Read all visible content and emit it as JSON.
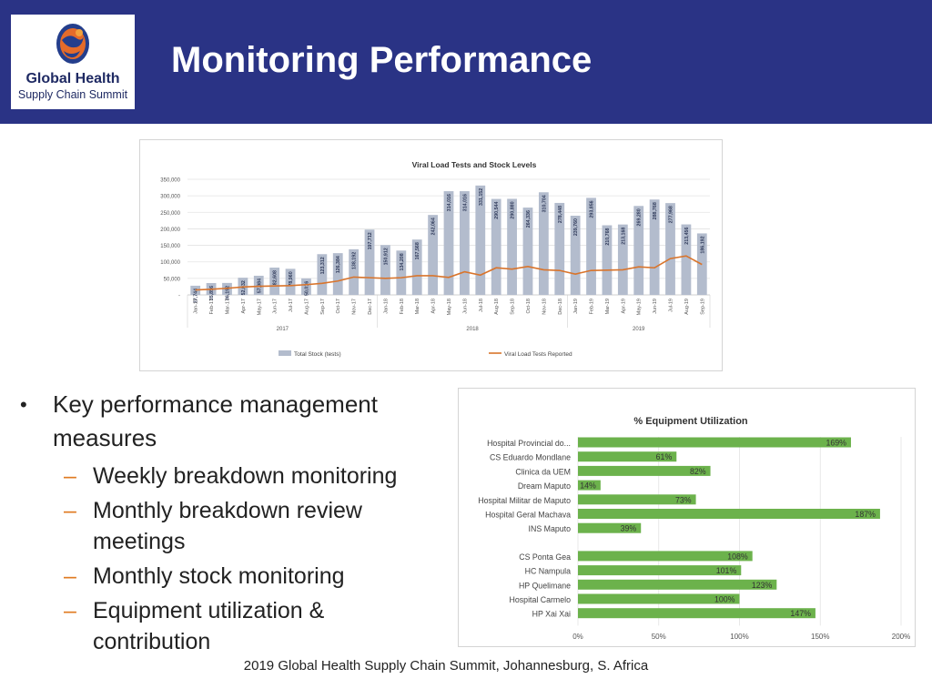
{
  "header": {
    "title": "Monitoring Performance",
    "logo_line1": "Global Health",
    "logo_line2": "Supply Chain Summit"
  },
  "bullets": {
    "main": "Key performance management measures",
    "subs": [
      "Weekly breakdown monitoring",
      "Monthly breakdown review meetings",
      "Monthly stock monitoring",
      "Equipment utilization & contribution"
    ]
  },
  "footer": "2019 Global Health Supply Chain Summit, Johannesburg, S. Africa",
  "colors": {
    "header": "#2a3385",
    "bar_gray": "#b3bccd",
    "line_orange": "#d9742b",
    "bar_green": "#6cb24c",
    "dash_orange": "#e07b22"
  },
  "chart_data": [
    {
      "type": "bar",
      "title": "Viral Load Tests and Stock Levels",
      "categories": [
        "Jan-17",
        "Feb-17",
        "Mar-17",
        "Apr-17",
        "May-17",
        "Jun-17",
        "Jul-17",
        "Aug-17",
        "Sep-17",
        "Oct-17",
        "Nov-17",
        "Dec-17",
        "Jan-18",
        "Feb-18",
        "Mar-18",
        "Apr-18",
        "May-18",
        "Jun-18",
        "Jul-18",
        "Aug-18",
        "Sep-18",
        "Oct-18",
        "Nov-18",
        "Dec-18",
        "Jan-19",
        "Feb-19",
        "Mar-19",
        "Apr-19",
        "May-19",
        "Jun-19",
        "Jul-19",
        "Aug-19",
        "Sep-19"
      ],
      "year_groups": [
        {
          "label": "2017",
          "start": 0,
          "end": 11
        },
        {
          "label": "2018",
          "start": 12,
          "end": 23
        },
        {
          "label": "2019",
          "start": 24,
          "end": 32
        }
      ],
      "series": [
        {
          "name": "Total Stock (tests)",
          "type": "bar",
          "values": [
            27744,
            35856,
            36192,
            52032,
            57984,
            82608,
            78960,
            50016,
            123312,
            126384,
            138192,
            197712,
            150912,
            134208,
            167568,
            242064,
            314016,
            314016,
            331152,
            290544,
            290880,
            264336,
            310704,
            278448,
            239760,
            293856,
            210768,
            213168,
            269280,
            288768,
            277968,
            213456,
            186192
          ],
          "labels": [
            "27,744",
            "35,856",
            "36,192",
            "52,032",
            "57,984",
            "82,608",
            "78,960",
            "50,016",
            "123,312",
            "126,384",
            "138,192",
            "197,712",
            "150,912",
            "134,208",
            "167,568",
            "242,064",
            "314,016",
            "314,016",
            "331,152",
            "290,544",
            "290,880",
            "264,336",
            "310,704",
            "278,448",
            "239,760",
            "293,856",
            "210,768",
            "213,168",
            "269,280",
            "288,768",
            "277,968",
            "213,456",
            "186,192"
          ]
        },
        {
          "name": "Viral Load Tests Reported",
          "type": "line",
          "values": [
            15000,
            17000,
            20000,
            24000,
            26000,
            27000,
            28000,
            31000,
            35000,
            42000,
            54000,
            52000,
            50000,
            52000,
            58000,
            58000,
            53000,
            70000,
            60000,
            82000,
            78000,
            86000,
            76000,
            74000,
            63000,
            74000,
            75000,
            76000,
            85000,
            82000,
            110000,
            118000,
            92000
          ]
        }
      ],
      "ylim": [
        0,
        350000
      ],
      "yticks": [
        0,
        50000,
        100000,
        150000,
        200000,
        250000,
        300000,
        350000
      ],
      "ytick_labels": [
        "-",
        "50,000",
        "100,000",
        "150,000",
        "200,000",
        "250,000",
        "300,000",
        "350,000"
      ],
      "legend": "bottom",
      "grid": true
    },
    {
      "type": "bar",
      "orientation": "horizontal",
      "title": "% Equipment Utilization",
      "categories": [
        "Hospital Provincial do...",
        "CS Eduardo Mondlane",
        "Clinica da UEM",
        "Dream Maputo",
        "Hospital Militar de Maputo",
        "Hospital Geral Machava",
        "INS Maputo",
        "CS Ponta Gea",
        "HC Nampula",
        "HP Quelimane",
        "Hospital Carmelo",
        "HP Xai Xai"
      ],
      "values": [
        169,
        61,
        82,
        14,
        73,
        187,
        39,
        108,
        101,
        123,
        100,
        147
      ],
      "labels": [
        "169%",
        "61%",
        "82%",
        "14%",
        "73%",
        "187%",
        "39%",
        "108%",
        "101%",
        "123%",
        "100%",
        "147%"
      ],
      "gap_after_index": 6,
      "xlim": [
        0,
        200
      ],
      "xticks": [
        0,
        50,
        100,
        150,
        200
      ],
      "xtick_labels": [
        "0%",
        "50%",
        "100%",
        "150%",
        "200%"
      ],
      "grid": true
    }
  ]
}
